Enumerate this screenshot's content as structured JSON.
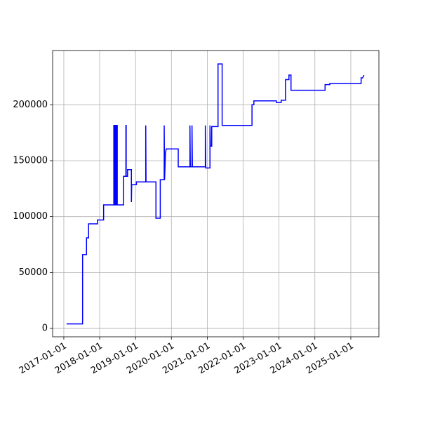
{
  "chart_data": {
    "type": "line",
    "grid": true,
    "series": [
      {
        "color": "#0000ff",
        "x": [
          "2017-01-29",
          "2017-07-11",
          "2017-07-11",
          "2017-08-20",
          "2017-08-20",
          "2017-09-10",
          "2017-09-10",
          "2017-12-10",
          "2017-12-10",
          "2018-02-10",
          "2018-02-10",
          "2018-05-25",
          "2018-05-25",
          "2018-06-01",
          "2018-06-01",
          "2018-06-08",
          "2018-06-08",
          "2018-06-15",
          "2018-06-15",
          "2018-06-22",
          "2018-06-22",
          "2018-06-29",
          "2018-06-29",
          "2018-09-01",
          "2018-09-01",
          "2018-09-25",
          "2018-09-25",
          "2018-09-28",
          "2018-09-28",
          "2018-10-12",
          "2018-10-12",
          "2018-11-20",
          "2018-11-20",
          "2018-11-23",
          "2019-01-10",
          "2019-01-10",
          "2019-04-15",
          "2019-04-15",
          "2019-04-18",
          "2019-07-28",
          "2019-07-28",
          "2019-09-10",
          "2019-09-10",
          "2019-10-20",
          "2019-10-20",
          "2019-10-24",
          "2019-11-02",
          "2019-11-10",
          "2020-03-11",
          "2020-03-11",
          "2020-07-08",
          "2020-07-08",
          "2020-07-12",
          "2020-07-29",
          "2020-07-29",
          "2020-08-02",
          "2020-12-12",
          "2020-12-12",
          "2020-12-16",
          "2021-01-28",
          "2021-01-28",
          "2021-02-02",
          "2021-02-15",
          "2021-02-15",
          "2021-04-20",
          "2021-04-20",
          "2021-06-01",
          "2021-06-01",
          "2022-04-01",
          "2022-04-01",
          "2022-04-20",
          "2022-04-20",
          "2022-12-05",
          "2022-12-05",
          "2023-01-23",
          "2023-01-23",
          "2023-03-08",
          "2023-03-08",
          "2023-04-12",
          "2023-04-12",
          "2023-05-03",
          "2023-05-03",
          "2024-04-14",
          "2024-04-14",
          "2024-06-01",
          "2024-06-01",
          "2025-04-16",
          "2025-04-16",
          "2025-05-01",
          "2025-05-15"
        ],
        "values": [
          4000,
          4000,
          66000,
          66000,
          81000,
          81000,
          93500,
          93500,
          97000,
          97000,
          110500,
          110500,
          181500,
          181500,
          110500,
          110500,
          181500,
          181500,
          110500,
          110500,
          181500,
          181500,
          110500,
          110500,
          136000,
          136000,
          181500,
          181500,
          136000,
          136000,
          142000,
          142000,
          113000,
          128500,
          128500,
          131000,
          131000,
          181500,
          131000,
          131000,
          98500,
          98500,
          133000,
          133000,
          181500,
          133000,
          157000,
          160500,
          160500,
          144500,
          144500,
          181500,
          144500,
          144500,
          181500,
          144500,
          144500,
          181500,
          143500,
          143500,
          181500,
          163000,
          163000,
          180500,
          180500,
          236500,
          236500,
          181500,
          181500,
          200000,
          200000,
          203500,
          203500,
          202000,
          202000,
          204000,
          204000,
          222500,
          222500,
          226500,
          226500,
          213000,
          213000,
          218000,
          218000,
          219000,
          219000,
          224000,
          224000,
          226500
        ]
      }
    ],
    "xlim": [
      "2016-09-09",
      "2025-10-14"
    ],
    "xticks": [
      "2017-01-01",
      "2018-01-01",
      "2019-01-01",
      "2020-01-01",
      "2021-01-01",
      "2022-01-01",
      "2023-01-01",
      "2024-01-01",
      "2025-01-01"
    ],
    "ylim": [
      -7500,
      248500
    ],
    "yticks": [
      0,
      50000,
      100000,
      150000,
      200000
    ]
  }
}
